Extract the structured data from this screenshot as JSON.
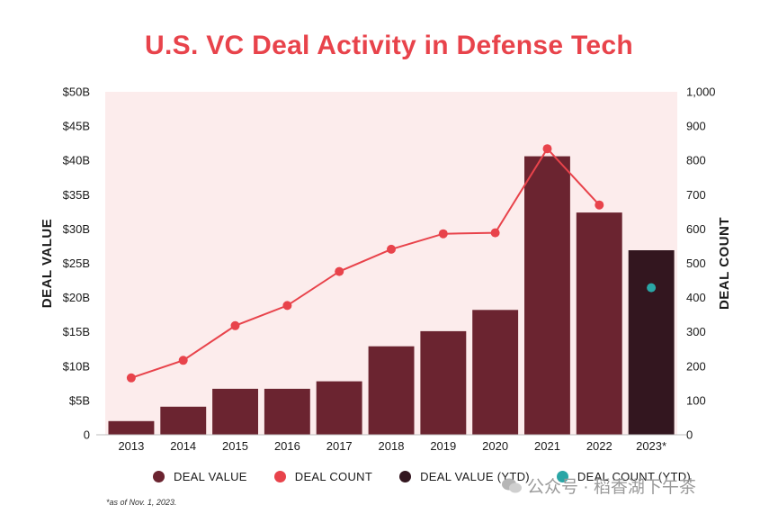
{
  "title": "U.S. VC Deal Activity in Defense Tech",
  "footnote": "*as of Nov. 1, 2023.",
  "watermark": "公众号 · 稻香湖下午茶",
  "colors": {
    "title": "#e8434b",
    "plot_bg": "#fcecec",
    "bar": "#6b2430",
    "bar_ytd": "#33161f",
    "line": "#e8434b",
    "point_ytd": "#2aa6a6"
  },
  "legend": [
    {
      "label": "DEAL VALUE",
      "color": "#6b2430"
    },
    {
      "label": "DEAL COUNT",
      "color": "#e8434b"
    },
    {
      "label": "DEAL VALUE (YTD)",
      "color": "#33161f"
    },
    {
      "label": "DEAL COUNT (YTD)",
      "color": "#2aa6a6"
    }
  ],
  "chart_data": {
    "type": "bar",
    "title": "U.S. VC Deal Activity in Defense Tech",
    "categories": [
      "2013",
      "2014",
      "2015",
      "2016",
      "2017",
      "2018",
      "2019",
      "2020",
      "2021",
      "2022",
      "2023*"
    ],
    "ylabel": "DEAL VALUE",
    "y2label": "DEAL COUNT",
    "ylim": [
      0,
      50
    ],
    "y2lim": [
      0,
      1000
    ],
    "yticks": [
      "0",
      "$5B",
      "$10B",
      "$15B",
      "$20B",
      "$25B",
      "$30B",
      "$35B",
      "$40B",
      "$45B",
      "$50B"
    ],
    "y2ticks": [
      "0",
      "100",
      "200",
      "300",
      "400",
      "500",
      "600",
      "700",
      "800",
      "900",
      "1,000"
    ],
    "legend_position": "bottom",
    "series": [
      {
        "name": "DEAL VALUE",
        "kind": "bar",
        "axis": "left",
        "values": [
          2.0,
          4.1,
          6.7,
          6.7,
          7.8,
          12.9,
          15.1,
          18.2,
          40.6,
          32.4,
          null
        ]
      },
      {
        "name": "DEAL VALUE (YTD)",
        "kind": "bar",
        "axis": "left",
        "values": [
          null,
          null,
          null,
          null,
          null,
          null,
          null,
          null,
          null,
          null,
          26.9
        ]
      },
      {
        "name": "DEAL COUNT",
        "kind": "line",
        "axis": "right",
        "values": [
          166,
          217,
          318,
          377,
          476,
          541,
          586,
          589,
          834,
          670,
          null
        ]
      },
      {
        "name": "DEAL COUNT (YTD)",
        "kind": "point",
        "axis": "right",
        "values": [
          null,
          null,
          null,
          null,
          null,
          null,
          null,
          null,
          null,
          null,
          429
        ]
      }
    ]
  }
}
